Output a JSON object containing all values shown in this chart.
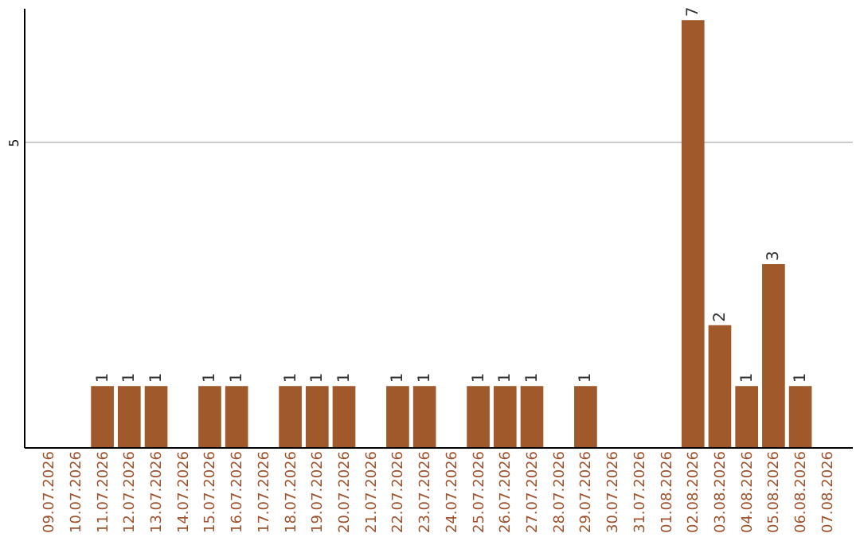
{
  "chart_data": {
    "type": "bar",
    "categories": [
      "09.07.2026",
      "10.07.2026",
      "11.07.2026",
      "12.07.2026",
      "13.07.2026",
      "14.07.2026",
      "15.07.2026",
      "16.07.2026",
      "17.07.2026",
      "18.07.2026",
      "19.07.2026",
      "20.07.2026",
      "21.07.2026",
      "22.07.2026",
      "23.07.2026",
      "24.07.2026",
      "25.07.2026",
      "26.07.2026",
      "27.07.2026",
      "28.07.2026",
      "29.07.2026",
      "30.07.2026",
      "31.07.2026",
      "01.08.2026",
      "02.08.2026",
      "03.08.2026",
      "04.08.2026",
      "05.08.2026",
      "06.08.2026",
      "07.08.2026"
    ],
    "values": [
      0,
      0,
      1,
      1,
      1,
      0,
      1,
      1,
      0,
      1,
      1,
      1,
      0,
      1,
      1,
      0,
      1,
      1,
      1,
      0,
      1,
      0,
      0,
      0,
      7,
      2,
      1,
      3,
      1,
      0
    ],
    "value_labels": [
      null,
      null,
      "1",
      "1",
      "1",
      null,
      "1",
      "1",
      null,
      "1",
      "1",
      "1",
      null,
      "1",
      "1",
      null,
      "1",
      "1",
      "1",
      null,
      "1",
      null,
      null,
      null,
      "7",
      "2",
      "1",
      "3",
      "1",
      null
    ],
    "color": "#a0592a",
    "ylim": [
      0,
      7.2
    ],
    "yticks": [
      5
    ],
    "grid": "y"
  }
}
